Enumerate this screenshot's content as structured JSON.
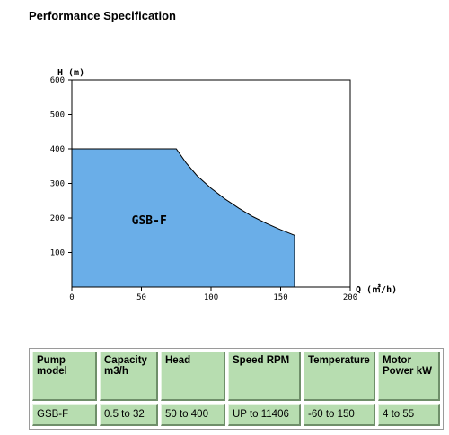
{
  "page_title": "Performance Specification",
  "chart_data": {
    "type": "area",
    "xlabel": "Q (㎥/h)",
    "ylabel": "H (m)",
    "xlim": [
      0,
      200
    ],
    "ylim": [
      0,
      600
    ],
    "x_ticks": [
      0,
      50,
      100,
      150,
      200
    ],
    "y_ticks": [
      100,
      200,
      300,
      400,
      500,
      600
    ],
    "region_label": "GSB-F",
    "region_color": "#6aaee8",
    "boundary": [
      {
        "x": 0,
        "y": 0
      },
      {
        "x": 0,
        "y": 400
      },
      {
        "x": 75,
        "y": 400
      },
      {
        "x": 82,
        "y": 360
      },
      {
        "x": 90,
        "y": 322
      },
      {
        "x": 100,
        "y": 286
      },
      {
        "x": 110,
        "y": 255
      },
      {
        "x": 120,
        "y": 228
      },
      {
        "x": 130,
        "y": 204
      },
      {
        "x": 140,
        "y": 184
      },
      {
        "x": 150,
        "y": 166
      },
      {
        "x": 160,
        "y": 150
      },
      {
        "x": 160,
        "y": 0
      }
    ]
  },
  "table": {
    "headers": [
      "Pump model",
      "Capacity m3/h",
      "Head",
      "Speed RPM",
      "Temperature",
      "Motor Power kW"
    ],
    "rows": [
      [
        "GSB-F",
        "0.5 to 32",
        "50 to 400",
        "UP to 11406",
        "-60 to 150",
        "4 to 55"
      ]
    ]
  }
}
